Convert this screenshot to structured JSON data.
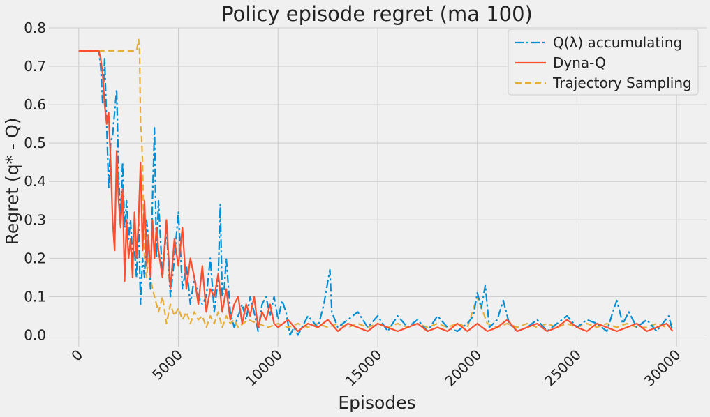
{
  "chart_data": {
    "type": "line",
    "title": "Policy episode regret (ma 100)",
    "xlabel": "Episodes",
    "ylabel": "Regret (q* - Q)",
    "xlim": [
      -1500,
      31500
    ],
    "ylim": [
      -0.03,
      0.8
    ],
    "xticks": [
      0,
      5000,
      10000,
      15000,
      20000,
      25000,
      30000
    ],
    "xtick_labels": [
      "0",
      "5000",
      "10000",
      "15000",
      "20000",
      "25000",
      "30000"
    ],
    "yticks": [
      0.0,
      0.1,
      0.2,
      0.3,
      0.4,
      0.5,
      0.6,
      0.7,
      0.8
    ],
    "ytick_labels": [
      "0.0",
      "0.1",
      "0.2",
      "0.3",
      "0.4",
      "0.5",
      "0.6",
      "0.7",
      "0.8"
    ],
    "grid": true,
    "legend_position": "top-right",
    "series": [
      {
        "name": "Q(λ) accumulating",
        "color": "#008fd5",
        "dash": "dash-dot",
        "x": [
          0,
          1000,
          1100,
          1200,
          1300,
          1400,
          1500,
          1600,
          1700,
          1800,
          1900,
          2000,
          2100,
          2200,
          2300,
          2400,
          2500,
          2600,
          2700,
          2800,
          2900,
          3000,
          3100,
          3200,
          3300,
          3400,
          3500,
          3600,
          3700,
          3800,
          3900,
          4000,
          4200,
          4400,
          4600,
          4800,
          5000,
          5200,
          5400,
          5600,
          5800,
          6000,
          6200,
          6400,
          6600,
          6800,
          7000,
          7100,
          7200,
          7300,
          7400,
          7600,
          7800,
          8000,
          8200,
          8400,
          8600,
          8800,
          9000,
          9200,
          9400,
          9600,
          9800,
          10000,
          10200,
          10400,
          10600,
          10800,
          11000,
          11500,
          12000,
          12300,
          12500,
          12600,
          12700,
          13000,
          13500,
          14000,
          14500,
          15000,
          15500,
          16000,
          16500,
          17000,
          17500,
          18000,
          18500,
          19000,
          19500,
          19800,
          20000,
          20200,
          20400,
          20600,
          21000,
          21300,
          21600,
          22000,
          22500,
          23000,
          23500,
          24000,
          24500,
          25000,
          25500,
          26000,
          26500,
          26800,
          27000,
          27300,
          27600,
          28000,
          28500,
          29000,
          29300,
          29600,
          29800
        ],
        "y": [
          0.74,
          0.74,
          0.7,
          0.6,
          0.72,
          0.55,
          0.38,
          0.5,
          0.52,
          0.58,
          0.64,
          0.42,
          0.3,
          0.45,
          0.28,
          0.35,
          0.25,
          0.3,
          0.2,
          0.22,
          0.15,
          0.3,
          0.08,
          0.2,
          0.15,
          0.3,
          0.25,
          0.12,
          0.35,
          0.54,
          0.2,
          0.35,
          0.15,
          0.28,
          0.1,
          0.2,
          0.32,
          0.12,
          0.18,
          0.08,
          0.15,
          0.1,
          0.08,
          0.1,
          0.2,
          0.06,
          0.15,
          0.34,
          0.1,
          0.12,
          0.2,
          0.06,
          0.02,
          0.05,
          0.08,
          0.04,
          0.1,
          0.06,
          0.01,
          0.08,
          0.1,
          0.05,
          0.1,
          0.04,
          0.09,
          0.06,
          0.0,
          0.02,
          0.0,
          0.05,
          0.02,
          0.08,
          0.14,
          0.17,
          0.06,
          0.02,
          0.04,
          0.06,
          0.02,
          0.05,
          0.01,
          0.05,
          0.02,
          0.04,
          0.01,
          0.05,
          0.02,
          0.01,
          0.03,
          0.05,
          0.11,
          0.07,
          0.13,
          0.02,
          0.04,
          0.09,
          0.03,
          0.01,
          0.02,
          0.04,
          0.01,
          0.03,
          0.05,
          0.02,
          0.04,
          0.03,
          0.01,
          0.06,
          0.09,
          0.03,
          0.06,
          0.02,
          0.04,
          0.01,
          0.03,
          0.05,
          0.01
        ]
      },
      {
        "name": "Dyna-Q",
        "color": "#fc4f30",
        "dash": "solid",
        "x": [
          0,
          1000,
          1100,
          1200,
          1300,
          1400,
          1500,
          1600,
          1700,
          1800,
          1900,
          2000,
          2100,
          2200,
          2300,
          2400,
          2500,
          2600,
          2700,
          2800,
          2900,
          3000,
          3100,
          3200,
          3300,
          3400,
          3500,
          3600,
          3700,
          3800,
          3900,
          4000,
          4200,
          4400,
          4600,
          4800,
          5000,
          5200,
          5400,
          5600,
          5800,
          6000,
          6200,
          6400,
          6600,
          6800,
          7000,
          7200,
          7400,
          7600,
          7800,
          8000,
          8200,
          8400,
          8600,
          8800,
          9000,
          9200,
          9400,
          9600,
          9800,
          10000,
          10500,
          11000,
          11500,
          12000,
          12500,
          13000,
          13500,
          14000,
          14500,
          15000,
          15500,
          16000,
          16500,
          17000,
          17500,
          18000,
          18500,
          19000,
          19500,
          20000,
          20500,
          21000,
          21500,
          22000,
          22500,
          23000,
          23500,
          24000,
          24500,
          25000,
          25500,
          26000,
          26500,
          27000,
          27500,
          28000,
          28500,
          29000,
          29500,
          29800
        ],
        "y": [
          0.74,
          0.74,
          0.72,
          0.68,
          0.6,
          0.55,
          0.58,
          0.45,
          0.3,
          0.22,
          0.48,
          0.35,
          0.28,
          0.38,
          0.14,
          0.3,
          0.2,
          0.25,
          0.15,
          0.32,
          0.2,
          0.3,
          0.45,
          0.22,
          0.35,
          0.18,
          0.26,
          0.15,
          0.3,
          0.2,
          0.28,
          0.22,
          0.15,
          0.3,
          0.12,
          0.25,
          0.18,
          0.28,
          0.12,
          0.2,
          0.15,
          0.08,
          0.18,
          0.06,
          0.12,
          0.1,
          0.16,
          0.06,
          0.12,
          0.04,
          0.08,
          0.1,
          0.03,
          0.08,
          0.05,
          0.1,
          0.02,
          0.06,
          0.04,
          0.08,
          0.03,
          0.02,
          0.04,
          0.01,
          0.03,
          0.02,
          0.04,
          0.01,
          0.03,
          0.02,
          0.01,
          0.03,
          0.02,
          0.01,
          0.02,
          0.03,
          0.01,
          0.02,
          0.01,
          0.03,
          0.01,
          0.03,
          0.01,
          0.02,
          0.04,
          0.01,
          0.02,
          0.03,
          0.01,
          0.02,
          0.04,
          0.02,
          0.01,
          0.03,
          0.02,
          0.01,
          0.02,
          0.03,
          0.01,
          0.02,
          0.03,
          0.01
        ]
      },
      {
        "name": "Trajectory Sampling",
        "color": "#e5ae38",
        "dash": "dashed",
        "x": [
          0,
          500,
          1000,
          1500,
          2000,
          2500,
          2900,
          3000,
          3050,
          3100,
          3150,
          3200,
          3250,
          3300,
          3400,
          3500,
          3600,
          3700,
          3800,
          3900,
          4000,
          4200,
          4400,
          4600,
          4800,
          5000,
          5200,
          5400,
          5600,
          5800,
          6000,
          6200,
          6400,
          6600,
          6800,
          7000,
          7200,
          7400,
          7600,
          7800,
          8000,
          8500,
          9000,
          9500,
          10000,
          10500,
          11000,
          11500,
          12000,
          12500,
          13000,
          13500,
          14000,
          14500,
          15000,
          15500,
          16000,
          16500,
          17000,
          17500,
          18000,
          18500,
          19000,
          19500,
          20000,
          20500,
          21000,
          21500,
          22000,
          22500,
          23000,
          23500,
          24000,
          24500,
          25000,
          25500,
          26000,
          26500,
          27000,
          27500,
          28000,
          28500,
          29000,
          29500,
          29800
        ],
        "y": [
          0.74,
          0.74,
          0.74,
          0.74,
          0.74,
          0.74,
          0.74,
          0.77,
          0.74,
          0.55,
          0.52,
          0.45,
          0.3,
          0.2,
          0.15,
          0.2,
          0.15,
          0.12,
          0.1,
          0.08,
          0.06,
          0.1,
          0.03,
          0.08,
          0.05,
          0.07,
          0.04,
          0.06,
          0.03,
          0.06,
          0.04,
          0.05,
          0.02,
          0.05,
          0.03,
          0.06,
          0.02,
          0.05,
          0.03,
          0.04,
          0.02,
          0.04,
          0.03,
          0.02,
          0.03,
          0.02,
          0.03,
          0.02,
          0.03,
          0.02,
          0.03,
          0.02,
          0.03,
          0.02,
          0.03,
          0.02,
          0.03,
          0.02,
          0.03,
          0.02,
          0.03,
          0.02,
          0.03,
          0.02,
          0.1,
          0.03,
          0.02,
          0.03,
          0.02,
          0.03,
          0.02,
          0.03,
          0.02,
          0.03,
          0.02,
          0.03,
          0.02,
          0.03,
          0.02,
          0.03,
          0.02,
          0.02,
          0.03,
          0.02,
          0.03
        ]
      }
    ]
  }
}
